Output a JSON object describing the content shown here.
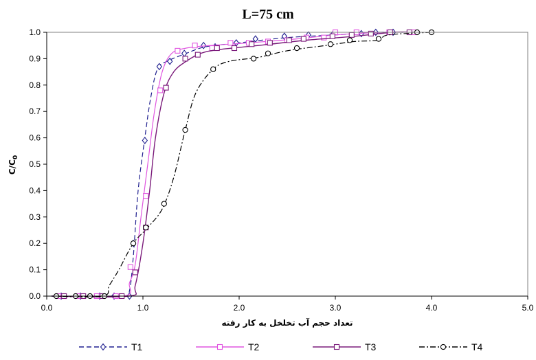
{
  "chart_data": {
    "type": "line",
    "title": "L=75 cm",
    "xlabel": "تعداد حجم آب تخلخل به کار رفته",
    "ylabel": "C/C",
    "ylabel_sub": "0",
    "xlim": [
      0,
      5
    ],
    "ylim": [
      0,
      1
    ],
    "x_ticks": [
      "0.0",
      "1.0",
      "2.0",
      "3.0",
      "4.0",
      "5.0"
    ],
    "y_ticks": [
      "0.0",
      "0.1",
      "0.2",
      "0.3",
      "0.4",
      "0.5",
      "0.6",
      "0.7",
      "0.8",
      "0.9",
      "1.0"
    ],
    "grid": false,
    "legend_position": "bottom",
    "series": [
      {
        "name": "T1",
        "color": "#1f1f8f",
        "marker": "diamond",
        "dash": "7,4",
        "points": [
          [
            0.15,
            0
          ],
          [
            0.35,
            0
          ],
          [
            0.55,
            0
          ],
          [
            0.7,
            0
          ],
          [
            0.86,
            0
          ],
          [
            0.9,
            0.2
          ],
          [
            1.02,
            0.59
          ],
          [
            1.17,
            0.87
          ],
          [
            1.28,
            0.89
          ],
          [
            1.43,
            0.92
          ],
          [
            1.63,
            0.95
          ],
          [
            1.75,
            0.945
          ],
          [
            1.97,
            0.96
          ],
          [
            2.17,
            0.975
          ],
          [
            2.47,
            0.985
          ],
          [
            2.72,
            0.99
          ],
          [
            2.97,
            0.99
          ],
          [
            3.27,
            0.995
          ],
          [
            3.42,
            1.0
          ],
          [
            3.6,
            1.0
          ]
        ],
        "curve": [
          [
            0.05,
            0
          ],
          [
            0.8,
            0
          ],
          [
            0.86,
            0.02
          ],
          [
            0.9,
            0.15
          ],
          [
            0.95,
            0.4
          ],
          [
            1.02,
            0.6
          ],
          [
            1.08,
            0.75
          ],
          [
            1.15,
            0.86
          ],
          [
            1.25,
            0.89
          ],
          [
            1.45,
            0.92
          ],
          [
            1.65,
            0.945
          ],
          [
            2.0,
            0.96
          ],
          [
            2.5,
            0.98
          ],
          [
            3.0,
            0.99
          ],
          [
            3.45,
            1.0
          ],
          [
            3.7,
            1.0
          ]
        ]
      },
      {
        "name": "T2",
        "color": "#e055e0",
        "marker": "square",
        "dash": "",
        "points": [
          [
            0.12,
            0
          ],
          [
            0.32,
            0
          ],
          [
            0.52,
            0
          ],
          [
            0.72,
            0
          ],
          [
            0.87,
            0.11
          ],
          [
            0.92,
            0.09
          ],
          [
            1.03,
            0.38
          ],
          [
            1.18,
            0.78
          ],
          [
            1.36,
            0.93
          ],
          [
            1.54,
            0.95
          ],
          [
            1.72,
            0.94
          ],
          [
            1.91,
            0.96
          ],
          [
            2.1,
            0.96
          ],
          [
            2.3,
            0.965
          ],
          [
            2.5,
            0.97
          ],
          [
            2.7,
            0.98
          ],
          [
            2.88,
            0.98
          ],
          [
            3.0,
            1.0
          ],
          [
            3.22,
            1.0
          ],
          [
            3.56,
            1.0
          ],
          [
            3.82,
            1.0
          ]
        ],
        "curve": [
          [
            0.05,
            0
          ],
          [
            0.8,
            0
          ],
          [
            0.86,
            0.05
          ],
          [
            0.92,
            0.12
          ],
          [
            0.98,
            0.3
          ],
          [
            1.05,
            0.5
          ],
          [
            1.12,
            0.7
          ],
          [
            1.2,
            0.85
          ],
          [
            1.3,
            0.92
          ],
          [
            1.45,
            0.94
          ],
          [
            1.7,
            0.95
          ],
          [
            2.1,
            0.96
          ],
          [
            2.6,
            0.975
          ],
          [
            3.0,
            0.99
          ],
          [
            3.5,
            1.0
          ],
          [
            3.85,
            1.0
          ]
        ]
      },
      {
        "name": "T3",
        "color": "#7a1a7a",
        "marker": "square",
        "dash": "",
        "points": [
          [
            0.18,
            0
          ],
          [
            0.38,
            0
          ],
          [
            0.58,
            0
          ],
          [
            0.78,
            0
          ],
          [
            0.92,
            0.09
          ],
          [
            1.03,
            0.26
          ],
          [
            1.24,
            0.79
          ],
          [
            1.44,
            0.9
          ],
          [
            1.57,
            0.915
          ],
          [
            1.77,
            0.94
          ],
          [
            1.95,
            0.94
          ],
          [
            2.13,
            0.955
          ],
          [
            2.32,
            0.96
          ],
          [
            2.52,
            0.97
          ],
          [
            2.67,
            0.975
          ],
          [
            2.97,
            0.985
          ],
          [
            3.17,
            0.99
          ],
          [
            3.37,
            0.995
          ],
          [
            3.57,
            1.0
          ],
          [
            3.77,
            1.0
          ]
        ],
        "curve": [
          [
            0.05,
            0
          ],
          [
            0.85,
            0
          ],
          [
            0.92,
            0.04
          ],
          [
            1.0,
            0.2
          ],
          [
            1.07,
            0.4
          ],
          [
            1.13,
            0.6
          ],
          [
            1.22,
            0.77
          ],
          [
            1.32,
            0.85
          ],
          [
            1.45,
            0.89
          ],
          [
            1.6,
            0.92
          ],
          [
            1.8,
            0.935
          ],
          [
            2.2,
            0.95
          ],
          [
            2.7,
            0.97
          ],
          [
            3.2,
            0.985
          ],
          [
            3.6,
            1.0
          ],
          [
            3.85,
            1.0
          ]
        ]
      },
      {
        "name": "T4",
        "color": "#000000",
        "marker": "circle",
        "dash": "8,3,2,3",
        "points": [
          [
            0.1,
            0
          ],
          [
            0.3,
            0
          ],
          [
            0.45,
            0
          ],
          [
            0.6,
            0
          ],
          [
            0.9,
            0.2
          ],
          [
            1.03,
            0.26
          ],
          [
            1.22,
            0.35
          ],
          [
            1.44,
            0.63
          ],
          [
            1.73,
            0.86
          ],
          [
            2.15,
            0.9
          ],
          [
            2.3,
            0.92
          ],
          [
            2.6,
            0.94
          ],
          [
            2.95,
            0.955
          ],
          [
            3.15,
            0.97
          ],
          [
            3.45,
            0.975
          ],
          [
            3.85,
            1.0
          ],
          [
            4.0,
            1.0
          ]
        ],
        "curve": [
          [
            0.05,
            0
          ],
          [
            0.58,
            0
          ],
          [
            0.65,
            0.04
          ],
          [
            0.75,
            0.1
          ],
          [
            0.9,
            0.2
          ],
          [
            1.05,
            0.26
          ],
          [
            1.2,
            0.33
          ],
          [
            1.32,
            0.45
          ],
          [
            1.44,
            0.63
          ],
          [
            1.55,
            0.77
          ],
          [
            1.73,
            0.86
          ],
          [
            1.9,
            0.89
          ],
          [
            2.2,
            0.905
          ],
          [
            2.5,
            0.93
          ],
          [
            2.9,
            0.95
          ],
          [
            3.2,
            0.965
          ],
          [
            3.45,
            0.97
          ],
          [
            3.55,
            0.99
          ],
          [
            4.0,
            1.0
          ]
        ]
      }
    ]
  }
}
